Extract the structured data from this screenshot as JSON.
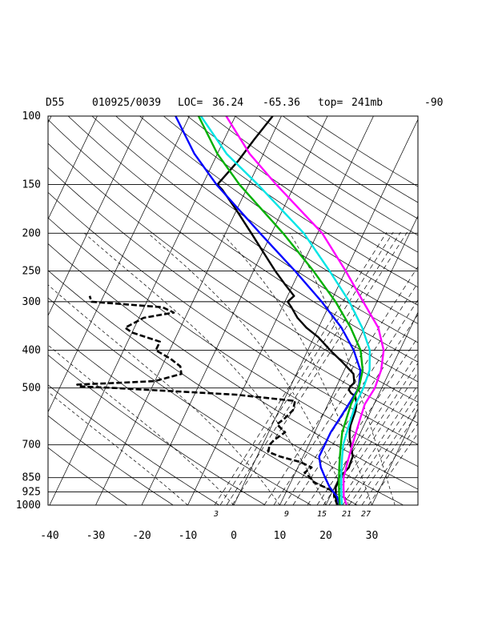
{
  "header": {
    "station": "D55",
    "datetime": "010925/0039",
    "loc_label": "LOC=",
    "lat": "36.24",
    "lon": "-65.36",
    "top_label": "top=",
    "top_value": "241mb",
    "extra": "-90"
  },
  "chart_data": {
    "type": "line",
    "subtype": "skew-T log-p sounding",
    "title": "D55   010925/0039 LOC= 36.24   -65.36  top= 241mb   -90",
    "pressure_levels": [
      100,
      150,
      200,
      250,
      300,
      400,
      500,
      700,
      850,
      925,
      1000
    ],
    "pressure_tick_labels": [
      "100",
      "150",
      "200",
      "250",
      "300",
      "400",
      "500",
      "700",
      "850",
      "925",
      "1000"
    ],
    "temperature_ticks": [
      -40,
      -30,
      -20,
      -10,
      0,
      10,
      20,
      30
    ],
    "temperature_tick_labels": [
      "-40",
      "-30",
      "-20",
      "-10",
      "0",
      "10",
      "20",
      "30"
    ],
    "xlim": [
      -40,
      40
    ],
    "ylim": [
      1000,
      100
    ],
    "y_scale": "log",
    "mixing_ratio_labels": [
      "3",
      "9",
      "15",
      "21",
      "27"
    ],
    "grid": true,
    "series": [
      {
        "style": "solid",
        "color": "#000000",
        "points": [
          [
            1000,
            22.5
          ],
          [
            975,
            21.8
          ],
          [
            950,
            21.2
          ],
          [
            925,
            20.8
          ],
          [
            900,
            20.3
          ],
          [
            875,
            20.3
          ],
          [
            850,
            20.0
          ],
          [
            825,
            20.6
          ],
          [
            800,
            21.1
          ],
          [
            775,
            20.9
          ],
          [
            750,
            20.8
          ],
          [
            725,
            20.0
          ],
          [
            700,
            19.2
          ],
          [
            675,
            18.3
          ],
          [
            650,
            17.6
          ],
          [
            625,
            17.1
          ],
          [
            600,
            16.9
          ],
          [
            575,
            16.7
          ],
          [
            550,
            16.2
          ],
          [
            525,
            15.1
          ],
          [
            515,
            13.8
          ],
          [
            505,
            13.0
          ],
          [
            495,
            13.0
          ],
          [
            485,
            13.5
          ],
          [
            460,
            12.4
          ],
          [
            430,
            8.9
          ],
          [
            400,
            4.9
          ],
          [
            370,
            0.9
          ],
          [
            350,
            -2.6
          ],
          [
            330,
            -5.6
          ],
          [
            310,
            -8.0
          ],
          [
            300,
            -9.4
          ],
          [
            290,
            -8.6
          ],
          [
            270,
            -11.9
          ],
          [
            250,
            -15.3
          ],
          [
            225,
            -19.6
          ],
          [
            200,
            -24.4
          ],
          [
            175,
            -29.9
          ],
          [
            155,
            -35.1
          ],
          [
            150,
            -36.8
          ],
          [
            130,
            -34.7
          ],
          [
            115,
            -33.5
          ],
          [
            100,
            -31.9
          ]
        ]
      },
      {
        "style": "dashed",
        "color": "#000000",
        "points": [
          [
            1000,
            22.5
          ],
          [
            950,
            20.9
          ],
          [
            925,
            20.4
          ],
          [
            900,
            18.0
          ],
          [
            875,
            15.1
          ],
          [
            850,
            13.8
          ],
          [
            825,
            12.0
          ],
          [
            800,
            13.0
          ],
          [
            775,
            10.0
          ],
          [
            750,
            5.0
          ],
          [
            730,
            2.0
          ],
          [
            700,
            1.5
          ],
          [
            680,
            2.0
          ],
          [
            650,
            3.6
          ],
          [
            620,
            1.0
          ],
          [
            600,
            2.0
          ],
          [
            570,
            3.0
          ],
          [
            540,
            2.5
          ],
          [
            520,
            -11.0
          ],
          [
            500,
            -38.0
          ],
          [
            495,
            -46.0
          ],
          [
            490,
            -46.5
          ],
          [
            485,
            -38.0
          ],
          [
            480,
            -30.0
          ],
          [
            460,
            -25.0
          ],
          [
            440,
            -26.0
          ],
          [
            420,
            -29.0
          ],
          [
            400,
            -33.0
          ],
          [
            380,
            -33.0
          ],
          [
            360,
            -40.0
          ],
          [
            350,
            -42.0
          ],
          [
            330,
            -39.0
          ],
          [
            320,
            -33.0
          ],
          [
            310,
            -36.0
          ],
          [
            300,
            -52.0
          ],
          [
            290,
            -53.0
          ]
        ]
      },
      {
        "style": "solid",
        "color": "#0000ff",
        "points": [
          [
            1000,
            23.0
          ],
          [
            950,
            21.5
          ],
          [
            900,
            19.0
          ],
          [
            850,
            17.0
          ],
          [
            800,
            15.0
          ],
          [
            750,
            13.5
          ],
          [
            700,
            13.5
          ],
          [
            650,
            13.5
          ],
          [
            600,
            14.0
          ],
          [
            550,
            14.5
          ],
          [
            500,
            15.0
          ],
          [
            450,
            13.5
          ],
          [
            400,
            10.0
          ],
          [
            350,
            5.0
          ],
          [
            300,
            -2.0
          ],
          [
            250,
            -11.0
          ],
          [
            200,
            -22.5
          ],
          [
            150,
            -37.0
          ],
          [
            125,
            -45.0
          ],
          [
            100,
            -53.0
          ]
        ]
      },
      {
        "style": "solid",
        "color": "#00b000",
        "points": [
          [
            1000,
            23.0
          ],
          [
            950,
            22.0
          ],
          [
            900,
            21.0
          ],
          [
            850,
            20.0
          ],
          [
            800,
            19.0
          ],
          [
            750,
            18.0
          ],
          [
            700,
            17.0
          ],
          [
            650,
            16.0
          ],
          [
            600,
            15.5
          ],
          [
            550,
            15.0
          ],
          [
            500,
            15.0
          ],
          [
            450,
            14.0
          ],
          [
            400,
            11.5
          ],
          [
            350,
            7.0
          ],
          [
            300,
            1.0
          ],
          [
            250,
            -7.0
          ],
          [
            200,
            -17.5
          ],
          [
            150,
            -32.0
          ],
          [
            125,
            -40.0
          ],
          [
            100,
            -48.0
          ]
        ]
      },
      {
        "style": "solid",
        "color": "#00e5e5",
        "points": [
          [
            1000,
            23.5
          ],
          [
            950,
            22.5
          ],
          [
            900,
            21.5
          ],
          [
            850,
            20.5
          ],
          [
            800,
            19.5
          ],
          [
            750,
            18.5
          ],
          [
            700,
            17.5
          ],
          [
            650,
            17.0
          ],
          [
            600,
            16.5
          ],
          [
            550,
            16.0
          ],
          [
            500,
            16.0
          ],
          [
            450,
            15.5
          ],
          [
            400,
            13.5
          ],
          [
            350,
            9.5
          ],
          [
            300,
            4.0
          ],
          [
            250,
            -3.5
          ],
          [
            200,
            -13.0
          ],
          [
            150,
            -28.0
          ],
          [
            125,
            -38.0
          ],
          [
            100,
            -47.5
          ]
        ]
      },
      {
        "style": "solid",
        "color": "#ff00ff",
        "points": [
          [
            1000,
            24.5
          ],
          [
            950,
            23.0
          ],
          [
            900,
            22.0
          ],
          [
            850,
            21.0
          ],
          [
            800,
            20.5
          ],
          [
            750,
            20.0
          ],
          [
            700,
            19.5
          ],
          [
            650,
            19.0
          ],
          [
            600,
            18.5
          ],
          [
            550,
            18.0
          ],
          [
            500,
            18.5
          ],
          [
            450,
            18.0
          ],
          [
            400,
            16.5
          ],
          [
            350,
            13.0
          ],
          [
            300,
            7.0
          ],
          [
            250,
            0.0
          ],
          [
            200,
            -9.0
          ],
          [
            150,
            -24.0
          ],
          [
            125,
            -33.0
          ],
          [
            100,
            -42.0
          ]
        ]
      }
    ]
  }
}
